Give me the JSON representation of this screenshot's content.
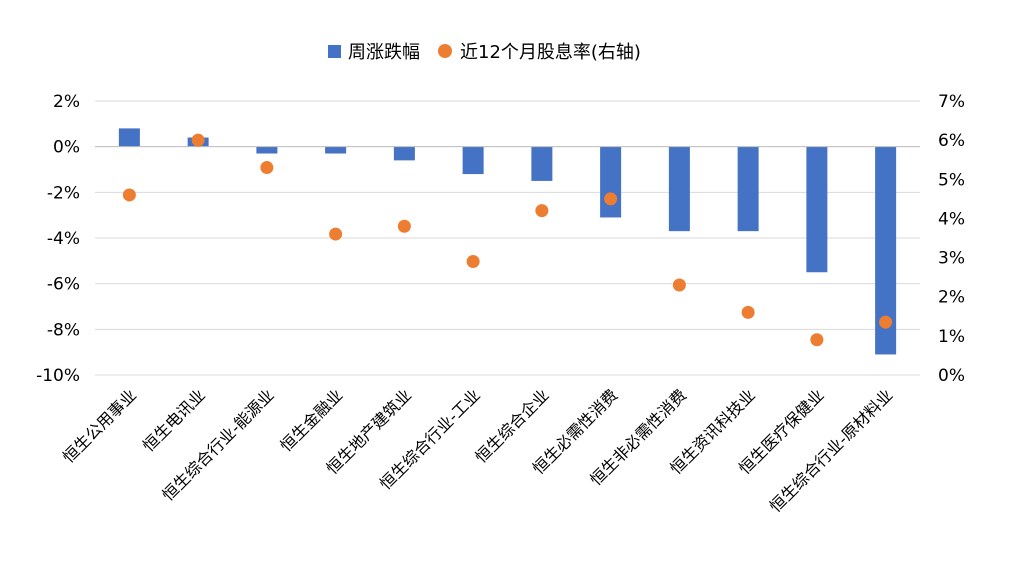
{
  "chart_data": {
    "type": "bar",
    "categories": [
      "恒生公用事业",
      "恒生电讯业",
      "恒生综合行业-能源业",
      "恒生金融业",
      "恒生地产建筑业",
      "恒生综合行业-工业",
      "恒生综合企业",
      "恒生必需性消费",
      "恒生非必需性消费",
      "恒生资讯科技业",
      "恒生医疗保健业",
      "恒生综合行业-原材料业"
    ],
    "series": [
      {
        "name": "周涨跌幅",
        "type": "bar",
        "axis": "left",
        "color": "#4472C4",
        "values": [
          0.8,
          0.4,
          -0.3,
          -0.3,
          -0.6,
          -1.2,
          -1.5,
          -3.1,
          -3.7,
          -3.7,
          -5.5,
          -9.1
        ]
      },
      {
        "name": "近12个月股息率(右轴)",
        "type": "scatter",
        "axis": "right",
        "color": "#ED7D31",
        "values": [
          4.6,
          6.0,
          5.3,
          3.6,
          3.8,
          2.9,
          4.2,
          4.5,
          2.3,
          1.6,
          0.9,
          1.35
        ]
      }
    ],
    "yleft": {
      "min": -10,
      "max": 2,
      "ticks": [
        "2%",
        "0%",
        "-2%",
        "-4%",
        "-6%",
        "-8%",
        "-10%"
      ],
      "tick_values": [
        2,
        0,
        -2,
        -4,
        -6,
        -8,
        -10
      ]
    },
    "yright": {
      "min": 0,
      "max": 7,
      "ticks": [
        "7%",
        "6%",
        "5%",
        "4%",
        "3%",
        "2%",
        "1%",
        "0%"
      ],
      "tick_values": [
        7,
        6,
        5,
        4,
        3,
        2,
        1,
        0
      ]
    },
    "grid": true,
    "legend_position": "top-center"
  }
}
